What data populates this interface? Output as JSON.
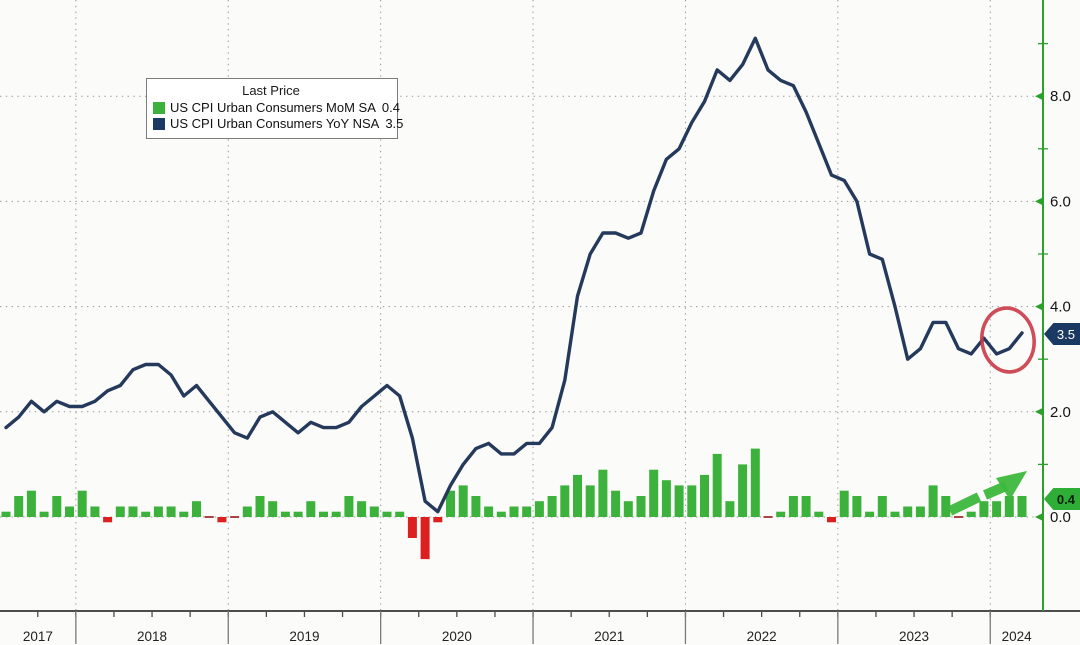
{
  "legend": {
    "title": "Last Price",
    "items": [
      {
        "label": "US CPI Urban Consumers MoM SA",
        "value": "0.4",
        "swatch": "#3cb23c"
      },
      {
        "label": "US CPI Urban Consumers YoY NSA",
        "value": "3.5",
        "swatch": "#1b3a63"
      }
    ]
  },
  "badges": {
    "line": {
      "text": "3.5",
      "bg": "#1b3a63"
    },
    "bar": {
      "text": "0.4",
      "bg": "#2fae37"
    }
  },
  "chart_data": {
    "type": "combo",
    "x_start": "2017-07",
    "x_end": "2024-03",
    "grid": "dotted",
    "series": [
      {
        "name": "US CPI Urban Consumers MoM SA",
        "type": "bar",
        "color_pos": "#3cb23c",
        "color_neg": "#dc2020",
        "color_zero": "#aa4444",
        "last": 0.4,
        "values": [
          0.1,
          0.4,
          0.5,
          0.1,
          0.4,
          0.2,
          0.5,
          0.2,
          -0.1,
          0.2,
          0.2,
          0.1,
          0.2,
          0.2,
          0.1,
          0.3,
          0.0,
          -0.1,
          0.0,
          0.2,
          0.4,
          0.3,
          0.1,
          0.1,
          0.3,
          0.1,
          0.1,
          0.4,
          0.3,
          0.2,
          0.1,
          0.1,
          -0.4,
          -0.8,
          -0.1,
          0.5,
          0.6,
          0.4,
          0.2,
          0.1,
          0.2,
          0.2,
          0.3,
          0.4,
          0.6,
          0.8,
          0.6,
          0.9,
          0.5,
          0.3,
          0.4,
          0.9,
          0.7,
          0.6,
          0.6,
          0.8,
          1.2,
          0.3,
          1.0,
          1.3,
          0.0,
          0.1,
          0.4,
          0.4,
          0.1,
          -0.1,
          0.5,
          0.4,
          0.1,
          0.4,
          0.1,
          0.2,
          0.2,
          0.6,
          0.4,
          0.0,
          0.1,
          0.3,
          0.3,
          0.4,
          0.4
        ]
      },
      {
        "name": "US CPI Urban Consumers YoY NSA",
        "type": "line",
        "color": "#24395b",
        "last": 3.5,
        "values": [
          1.7,
          1.9,
          2.2,
          2.0,
          2.2,
          2.1,
          2.1,
          2.2,
          2.4,
          2.5,
          2.8,
          2.9,
          2.9,
          2.7,
          2.3,
          2.5,
          2.2,
          1.9,
          1.6,
          1.5,
          1.9,
          2.0,
          1.8,
          1.6,
          1.8,
          1.7,
          1.7,
          1.8,
          2.1,
          2.3,
          2.5,
          2.3,
          1.5,
          0.3,
          0.1,
          0.6,
          1.0,
          1.3,
          1.4,
          1.2,
          1.2,
          1.4,
          1.4,
          1.7,
          2.6,
          4.2,
          5.0,
          5.4,
          5.4,
          5.3,
          5.4,
          6.2,
          6.8,
          7.0,
          7.5,
          7.9,
          8.5,
          8.3,
          8.6,
          9.1,
          8.5,
          8.3,
          8.2,
          7.7,
          7.1,
          6.5,
          6.4,
          6.0,
          5.0,
          4.9,
          4.0,
          3.0,
          3.2,
          3.7,
          3.7,
          3.2,
          3.1,
          3.4,
          3.1,
          3.2,
          3.5
        ]
      }
    ],
    "yaxis": {
      "side": "right",
      "color": "#2ca02c",
      "label_color": "#141414",
      "ylim": [
        -1.8,
        9.9
      ],
      "ticks": [
        {
          "v": 0,
          "label": "0.0"
        },
        {
          "v": 2,
          "label": "2.0"
        },
        {
          "v": 4,
          "label": "4.0"
        },
        {
          "v": 6,
          "label": "6.0"
        },
        {
          "v": 8,
          "label": "8.0"
        }
      ],
      "minor_ticks": [
        1,
        3,
        5,
        7,
        9
      ]
    },
    "xaxis": {
      "years": [
        "2017",
        "2018",
        "2019",
        "2020",
        "2021",
        "2022",
        "2023",
        "2024"
      ],
      "label_color": "#222222",
      "axis_color": "#4d4d4d"
    },
    "annotations": [
      {
        "type": "ellipse",
        "cx": 1008,
        "cy": 340,
        "rx": 26,
        "ry": 32,
        "rotate": -8,
        "color": "#c93a47"
      },
      {
        "type": "arrow",
        "color": "#3db83d",
        "segments": [
          [
            950,
            511,
            979,
            497
          ],
          [
            985,
            495,
            1006,
            486
          ]
        ],
        "head": [
          [
            1027,
            471
          ],
          [
            996,
            478
          ],
          [
            1010,
            500
          ]
        ]
      }
    ]
  }
}
